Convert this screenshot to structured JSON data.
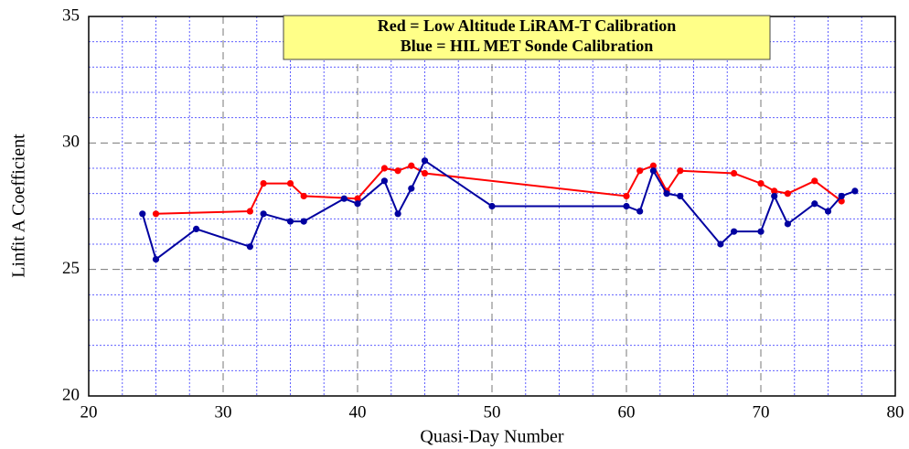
{
  "chart_data": {
    "type": "line",
    "xlabel": "Quasi-Day Number",
    "ylabel": "Linfit A Coefficient",
    "annotations": [
      "Red = Low Altitude LiRAM-T Calibration",
      "Blue = HIL MET Sonde Calibration"
    ],
    "xlim": [
      20,
      80
    ],
    "xticks": [
      20,
      30,
      40,
      50,
      60,
      70,
      80
    ],
    "ylim": [
      20,
      35
    ],
    "yticks": [
      20,
      25,
      30,
      35
    ],
    "grid": true,
    "series": [
      {
        "color": "#ff0000",
        "x": [
          25,
          32,
          33,
          35,
          36,
          40,
          42,
          43,
          44,
          45,
          60,
          61,
          62,
          63,
          64,
          68,
          70,
          71,
          72,
          74,
          76
        ],
        "values": [
          27.2,
          27.3,
          28.4,
          28.4,
          27.9,
          27.8,
          29.0,
          28.9,
          29.1,
          28.8,
          27.9,
          28.9,
          29.1,
          28.1,
          28.9,
          28.8,
          28.4,
          28.1,
          28.0,
          28.5,
          27.7
        ]
      },
      {
        "color": "#0000a0",
        "x": [
          24,
          25,
          28,
          32,
          33,
          35,
          36,
          39,
          40,
          42,
          43,
          44,
          45,
          50,
          60,
          61,
          62,
          63,
          64,
          67,
          68,
          70,
          71,
          72,
          74,
          75,
          76,
          77
        ],
        "values": [
          27.2,
          25.4,
          26.6,
          25.9,
          27.2,
          26.9,
          26.9,
          27.8,
          27.6,
          28.5,
          27.2,
          28.2,
          29.3,
          27.5,
          27.5,
          27.3,
          28.9,
          28.0,
          27.9,
          26.0,
          26.5,
          26.5,
          27.9,
          26.8,
          27.6,
          27.3,
          27.9,
          28.1
        ]
      }
    ]
  }
}
